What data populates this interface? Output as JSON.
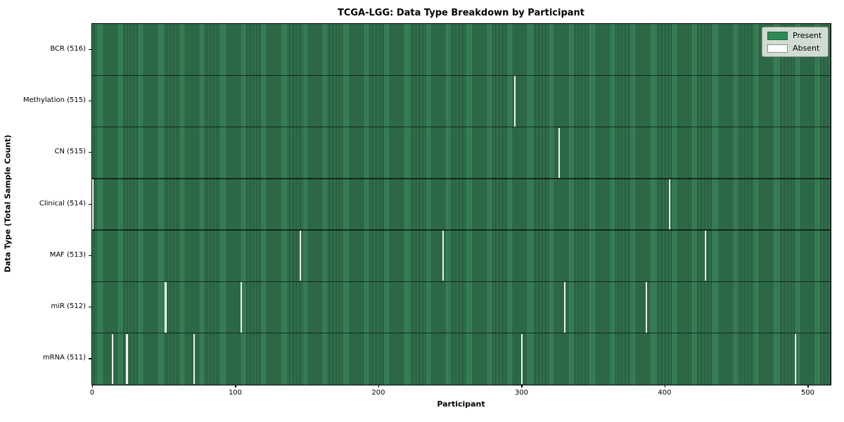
{
  "chart_data": {
    "type": "heatmap",
    "title": "TCGA-LGG: Data Type Breakdown by Participant",
    "xlabel": "Participant",
    "ylabel": "Data Type (Total Sample Count)",
    "n_participants": 516,
    "x_ticks": [
      0,
      100,
      200,
      300,
      400,
      500
    ],
    "grid": false,
    "legend_position": "upper right",
    "legend": [
      {
        "label": "Present",
        "color": "#2e8b57"
      },
      {
        "label": "Absent",
        "color": "#ffffff"
      }
    ],
    "rows": [
      {
        "name": "BCR",
        "label": "BCR (516)",
        "total": 516,
        "absent_participants": []
      },
      {
        "name": "Methylation",
        "label": "Methylation (515)",
        "total": 515,
        "absent_participants": [
          295
        ]
      },
      {
        "name": "CN",
        "label": "CN (515)",
        "total": 515,
        "absent_participants": [
          326
        ]
      },
      {
        "name": "Clinical",
        "label": "Clinical (514)",
        "total": 514,
        "absent_participants": [
          0,
          403
        ]
      },
      {
        "name": "MAF",
        "label": "MAF (513)",
        "total": 513,
        "absent_participants": [
          145,
          245,
          428
        ]
      },
      {
        "name": "miR",
        "label": "miR (512)",
        "total": 512,
        "absent_participants": [
          51,
          104,
          330,
          387
        ]
      },
      {
        "name": "mRNA",
        "label": "mRNA (511)",
        "total": 511,
        "absent_participants": [
          14,
          24,
          71,
          300,
          491
        ]
      }
    ],
    "colors": {
      "present_fill": "#3f8e60",
      "bar_edge": "#1b422d",
      "absent": "#f1f1ec"
    }
  }
}
